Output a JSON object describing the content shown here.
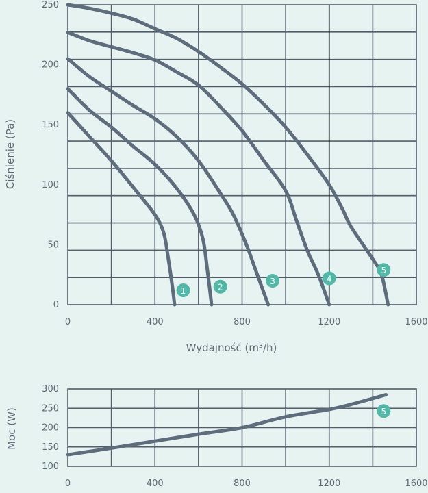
{
  "chart_data": [
    {
      "type": "line",
      "xlabel": "Wydajność (m³/h)",
      "ylabel": "Ciśnienie (Pa)",
      "xlim": [
        0,
        1600
      ],
      "ylim": [
        0,
        250
      ],
      "xticks": [
        0,
        400,
        800,
        1200,
        1600
      ],
      "yticks": [
        0,
        50,
        100,
        150,
        200,
        250
      ],
      "grid": true,
      "series": [
        {
          "name": "1",
          "points": [
            [
              0,
              160
            ],
            [
              100,
              140
            ],
            [
              200,
              120
            ],
            [
              300,
              98
            ],
            [
              400,
              75
            ],
            [
              440,
              60
            ],
            [
              460,
              40
            ],
            [
              480,
              15
            ],
            [
              490,
              0
            ]
          ]
        },
        {
          "name": "2",
          "points": [
            [
              0,
              180
            ],
            [
              100,
              162
            ],
            [
              200,
              148
            ],
            [
              300,
              132
            ],
            [
              400,
              117
            ],
            [
              500,
              97
            ],
            [
              580,
              75
            ],
            [
              620,
              55
            ],
            [
              640,
              30
            ],
            [
              660,
              0
            ]
          ]
        },
        {
          "name": "3",
          "points": [
            [
              0,
              205
            ],
            [
              100,
              190
            ],
            [
              200,
              178
            ],
            [
              300,
              166
            ],
            [
              400,
              155
            ],
            [
              500,
              140
            ],
            [
              600,
              120
            ],
            [
              700,
              93
            ],
            [
              760,
              75
            ],
            [
              820,
              50
            ],
            [
              860,
              30
            ],
            [
              900,
              10
            ],
            [
              920,
              0
            ]
          ]
        },
        {
          "name": "4",
          "points": [
            [
              0,
              227
            ],
            [
              100,
              220
            ],
            [
              200,
              215
            ],
            [
              300,
              210
            ],
            [
              400,
              204
            ],
            [
              500,
              194
            ],
            [
              600,
              183
            ],
            [
              700,
              165
            ],
            [
              800,
              145
            ],
            [
              900,
              120
            ],
            [
              1000,
              95
            ],
            [
              1050,
              70
            ],
            [
              1100,
              45
            ],
            [
              1150,
              25
            ],
            [
              1200,
              0
            ]
          ]
        },
        {
          "name": "5",
          "points": [
            [
              0,
              250
            ],
            [
              100,
              247
            ],
            [
              200,
              243
            ],
            [
              300,
              238
            ],
            [
              400,
              230
            ],
            [
              500,
              222
            ],
            [
              600,
              211
            ],
            [
              700,
              198
            ],
            [
              800,
              184
            ],
            [
              900,
              167
            ],
            [
              1000,
              148
            ],
            [
              1100,
              125
            ],
            [
              1200,
              100
            ],
            [
              1260,
              80
            ],
            [
              1300,
              65
            ],
            [
              1400,
              38
            ],
            [
              1440,
              25
            ],
            [
              1470,
              0
            ]
          ]
        }
      ],
      "markers": [
        {
          "label": "1",
          "x": 530,
          "y": 12
        },
        {
          "label": "2",
          "x": 700,
          "y": 15
        },
        {
          "label": "3",
          "x": 940,
          "y": 20
        },
        {
          "label": "4",
          "x": 1200,
          "y": 22
        },
        {
          "label": "5",
          "x": 1450,
          "y": 29
        }
      ]
    },
    {
      "type": "line",
      "xlabel": "",
      "ylabel": "Moc (W)",
      "xlim": [
        0,
        1600
      ],
      "ylim": [
        100,
        300
      ],
      "xticks": [
        0,
        400,
        800,
        1200,
        1600
      ],
      "yticks": [
        100,
        150,
        200,
        250,
        300
      ],
      "grid": true,
      "series": [
        {
          "name": "5",
          "points": [
            [
              0,
              130
            ],
            [
              200,
              147
            ],
            [
              400,
              165
            ],
            [
              600,
              183
            ],
            [
              800,
              200
            ],
            [
              1000,
              228
            ],
            [
              1200,
              247
            ],
            [
              1300,
              260
            ],
            [
              1460,
              285
            ]
          ]
        }
      ],
      "markers": [
        {
          "label": "5",
          "x": 1450,
          "y": 243
        }
      ]
    }
  ]
}
